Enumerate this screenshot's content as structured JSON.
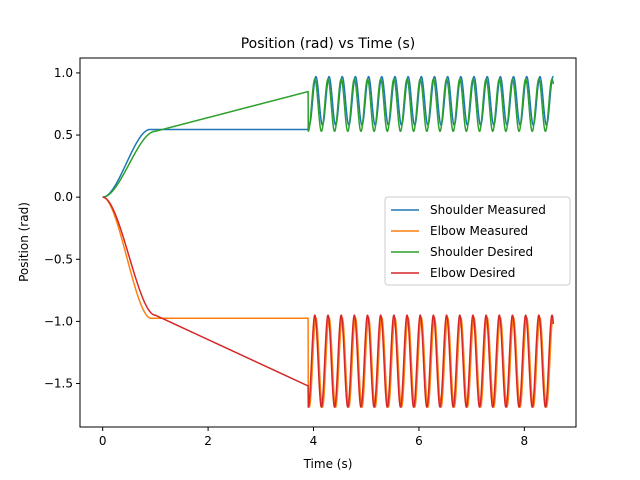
{
  "chart_data": {
    "type": "line",
    "title": "Position (rad) vs Time (s)",
    "xlabel": "Time (s)",
    "ylabel": "Position (rad)",
    "xlim": [
      -0.43,
      8.98
    ],
    "ylim": [
      -1.85,
      1.12
    ],
    "xticks": [
      0,
      2,
      4,
      6,
      8
    ],
    "xtick_labels": [
      "0",
      "2",
      "4",
      "6",
      "8"
    ],
    "yticks": [
      -1.5,
      -1.0,
      -0.5,
      0.0,
      0.5,
      1.0
    ],
    "ytick_labels": [
      "−1.5",
      "−1.0",
      "−0.5",
      "0.0",
      "0.5",
      "1.0"
    ],
    "grid": false,
    "legend_position": "center-right",
    "series": [
      {
        "name": "Shoulder Measured",
        "color": "#1f77b4",
        "phases": {
          "ramp": {
            "t_start": 0.0,
            "t_end": 0.9,
            "y_start": 0.0,
            "y_end": 0.545
          },
          "hold": {
            "t_start": 0.9,
            "t_end": 3.9,
            "y": 0.545
          },
          "osc": {
            "t_start": 3.9,
            "t_end": 8.55,
            "center": 0.775,
            "amplitude": 0.195,
            "period": 0.25,
            "lag": 0.02
          }
        }
      },
      {
        "name": "Elbow Measured",
        "color": "#ff7f0e",
        "phases": {
          "ramp": {
            "t_start": 0.0,
            "t_end": 0.92,
            "y_start": 0.0,
            "y_end": -0.975
          },
          "hold": {
            "t_start": 0.92,
            "t_end": 3.9,
            "y": -0.975
          },
          "osc": {
            "t_start": 3.9,
            "t_end": 8.55,
            "center": -1.33,
            "amplitude": 0.36,
            "period": 0.25,
            "lag": 0.02
          }
        }
      },
      {
        "name": "Shoulder Desired",
        "color": "#2ca02c",
        "phases": {
          "ramp": {
            "t_start": 0.0,
            "t_end": 1.0,
            "y_start": 0.0,
            "y_end": 0.53
          },
          "linear": {
            "t_start": 1.0,
            "t_end": 3.9,
            "y_start": 0.53,
            "y_end": 0.85
          },
          "osc": {
            "t_start": 3.9,
            "t_end": 8.55,
            "center": 0.74,
            "amplitude": 0.21,
            "period": 0.25,
            "lag": 0.0
          }
        }
      },
      {
        "name": "Elbow Desired",
        "color": "#d62728",
        "phases": {
          "ramp": {
            "t_start": 0.0,
            "t_end": 1.0,
            "y_start": 0.0,
            "y_end": -0.95
          },
          "linear": {
            "t_start": 1.0,
            "t_end": 3.9,
            "y_start": -0.95,
            "y_end": -1.52
          },
          "osc": {
            "t_start": 3.9,
            "t_end": 8.55,
            "center": -1.32,
            "amplitude": 0.37,
            "period": 0.25,
            "lag": 0.0
          }
        }
      }
    ]
  }
}
